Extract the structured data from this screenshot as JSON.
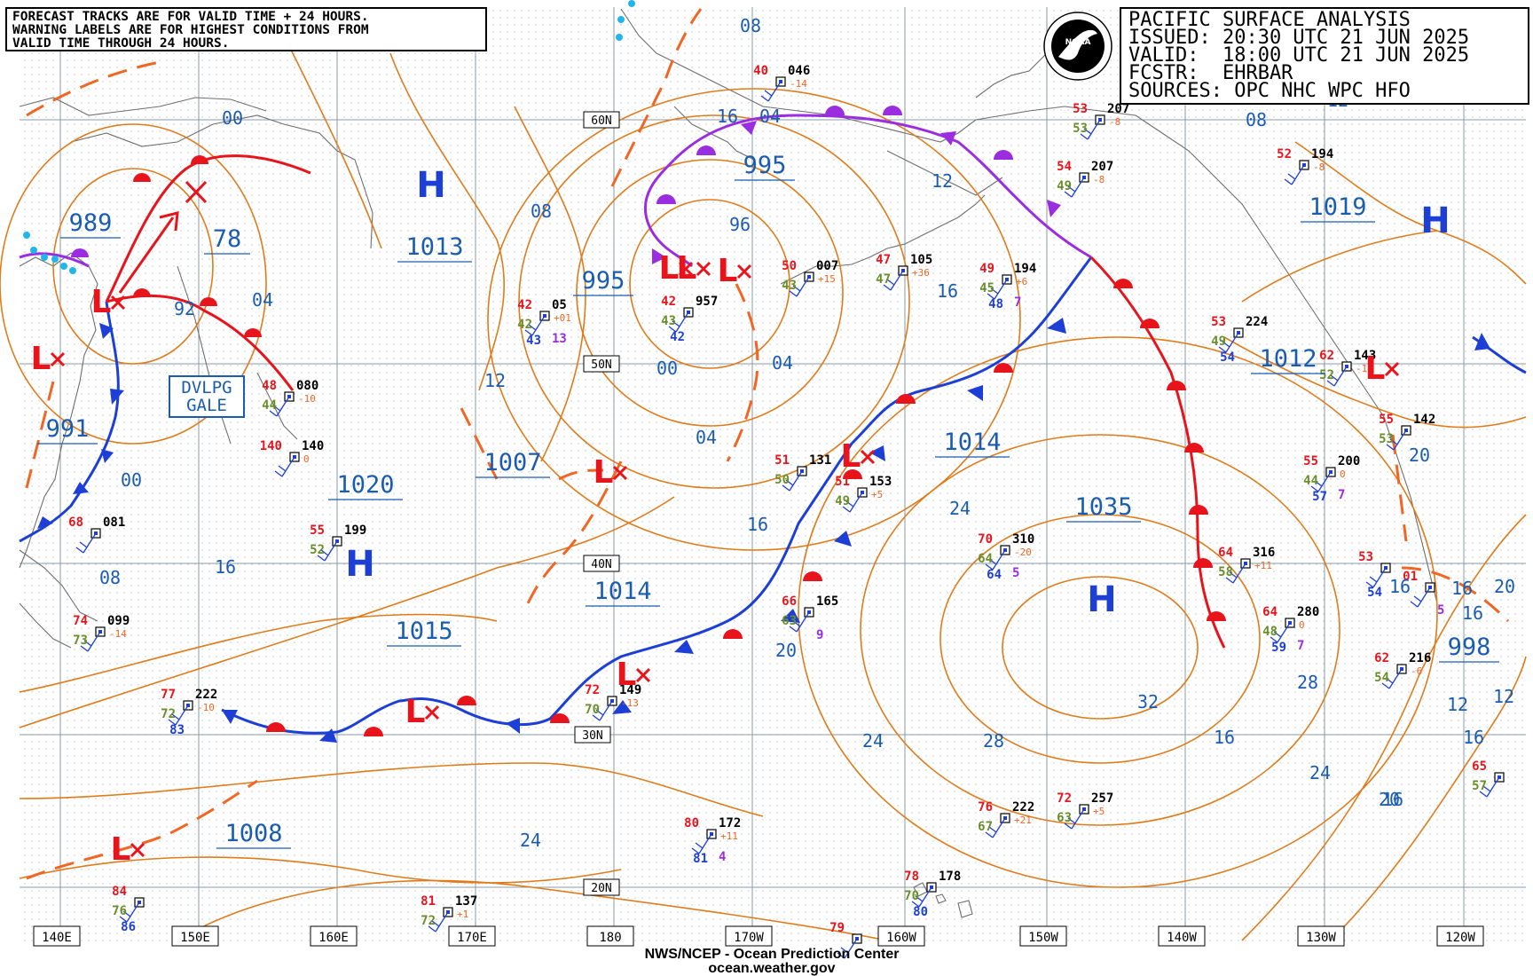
{
  "warning": {
    "lines": [
      "FORECAST TRACKS ARE FOR VALID TIME + 24 HOURS.",
      "WARNING LABELS ARE FOR HIGHEST CONDITIONS FROM",
      "VALID TIME THROUGH 24 HOURS."
    ]
  },
  "title_box": {
    "line1": "PACIFIC SURFACE ANALYSIS",
    "line2": "ISSUED: 20:30 UTC 21 JUN 2025",
    "line3": "VALID:  18:00 UTC 21 JUN 2025",
    "line4": "FCSTR:  EHRBAR",
    "line5": "SOURCES: OPC NHC WPC HFO"
  },
  "credit": {
    "line1": "NWS/NCEP - Ocean Prediction Center",
    "line2": "ocean.weather.gov"
  },
  "logo_text": "NOAA",
  "gale_label": {
    "line1": "DVLPG",
    "line2": "GALE"
  },
  "lon_labels": [
    "140E",
    "150E",
    "160E",
    "170E",
    "180",
    "170W",
    "160W",
    "150W",
    "140W",
    "130W",
    "120W"
  ],
  "lat_labels": [
    "60N",
    "50N",
    "40N",
    "30N",
    "20N"
  ],
  "colors": {
    "isobar": "#e07b1a",
    "grid": "#8a9aa8",
    "label_blue": "#1a5cb0",
    "low_red": "#e8141c",
    "high_blue": "#1d3fd6",
    "warm_front": "#e8141c",
    "cold_front": "#1d3fd6",
    "occluded_front": "#9a2de0",
    "coast": "#6e6e6e"
  },
  "pressure_boxes": [
    "989",
    "78",
    "1013",
    "995",
    "995",
    "991",
    "1020",
    "1007",
    "1014",
    "1015",
    "1008",
    "1014",
    "1035",
    "1019",
    "1012",
    "998"
  ],
  "highs": [
    "H",
    "H",
    "H",
    "H"
  ],
  "lows": [
    "L",
    "L",
    "L",
    "L",
    "L",
    "L",
    "L",
    "L",
    "L",
    "L",
    "L"
  ],
  "isobar_labels": [
    "08",
    "00",
    "04",
    "92",
    "04",
    "12",
    "00",
    "08",
    "16",
    "08",
    "12",
    "96",
    "04",
    "00",
    "04",
    "08",
    "16",
    "12",
    "16",
    "24",
    "20",
    "20",
    "24",
    "28",
    "24",
    "32",
    "28",
    "24",
    "16",
    "16",
    "16",
    "16",
    "20",
    "12",
    "12",
    "16",
    "20",
    "16",
    "16"
  ],
  "stations": [
    {
      "temp": "40",
      "press": "046",
      "tend": "-14"
    },
    {
      "temp": "53",
      "press": "207",
      "tend": "-8",
      "dew": "53"
    },
    {
      "temp": "54",
      "press": "207",
      "tend": "-8",
      "dew": "49"
    },
    {
      "temp": "42",
      "press": "957",
      "dew": "43",
      "sst": "42"
    },
    {
      "temp": "42",
      "press": "05",
      "tend": "+01",
      "dew": "42",
      "sst": "43",
      "vis": "13"
    },
    {
      "temp": "50",
      "press": "007",
      "tend": "+15",
      "dew": "43"
    },
    {
      "temp": "47",
      "press": "105",
      "tend": "+36",
      "dew": "47"
    },
    {
      "temp": "49",
      "press": "194",
      "tend": "+6",
      "dew": "45",
      "sst": "48",
      "vis": "7"
    },
    {
      "temp": "52",
      "press": "194",
      "tend": "-8"
    },
    {
      "temp": "53",
      "press": "224",
      "dew": "49",
      "sst": "54"
    },
    {
      "temp": "62",
      "press": "143",
      "tend": "-14",
      "dew": "52"
    },
    {
      "temp": "55",
      "press": "142",
      "dew": "53"
    },
    {
      "temp": "48",
      "press": "080",
      "tend": "-10",
      "dew": "44"
    },
    {
      "temp": "140",
      "press": "140",
      "tend": "0"
    },
    {
      "temp": "51",
      "press": "131",
      "dew": "50"
    },
    {
      "temp": "51",
      "press": "153",
      "tend": "+5",
      "dew": "49"
    },
    {
      "temp": "55",
      "press": "199",
      "dew": "52"
    },
    {
      "temp": "70",
      "press": "310",
      "tend": "-20",
      "dew": "64",
      "sst": "64",
      "vis": "5"
    },
    {
      "temp": "64",
      "press": "316",
      "tend": "+11",
      "dew": "58"
    },
    {
      "temp": "55",
      "press": "200",
      "tend": "0",
      "dew": "44",
      "sst": "57",
      "vis": "7"
    },
    {
      "temp": "68",
      "press": "081"
    },
    {
      "temp": "74",
      "press": "099",
      "tend": "-14",
      "dew": "73"
    },
    {
      "temp": "66",
      "press": "165",
      "dew": "63",
      "vis": "9"
    },
    {
      "temp": "64",
      "press": "280",
      "tend": "0",
      "dew": "48",
      "sst": "59",
      "vis": "7"
    },
    {
      "temp": "62",
      "press": "216",
      "tend": "-6",
      "dew": "54"
    },
    {
      "temp": "77",
      "press": "222",
      "tend": "-10",
      "dew": "72",
      "sst": "83"
    },
    {
      "temp": "72",
      "press": "149",
      "tend": "-13",
      "dew": "70"
    },
    {
      "temp": "76",
      "press": "222",
      "tend": "+21",
      "dew": "67"
    },
    {
      "temp": "72",
      "press": "257",
      "tend": "+5",
      "dew": "63"
    },
    {
      "temp": "80",
      "press": "172",
      "tend": "+11",
      "sst": "81",
      "vis": "4"
    },
    {
      "temp": "78",
      "press": "178",
      "dew": "70",
      "sst": "80"
    },
    {
      "temp": "81",
      "press": "137",
      "tend": "+1",
      "dew": "72"
    },
    {
      "temp": "84",
      "dew": "76",
      "sst": "86"
    },
    {
      "temp": "79"
    },
    {
      "temp": "65",
      "dew": "57"
    },
    {
      "temp": "01",
      "vis": "5"
    },
    {
      "temp": "53",
      "sst": "54"
    }
  ]
}
